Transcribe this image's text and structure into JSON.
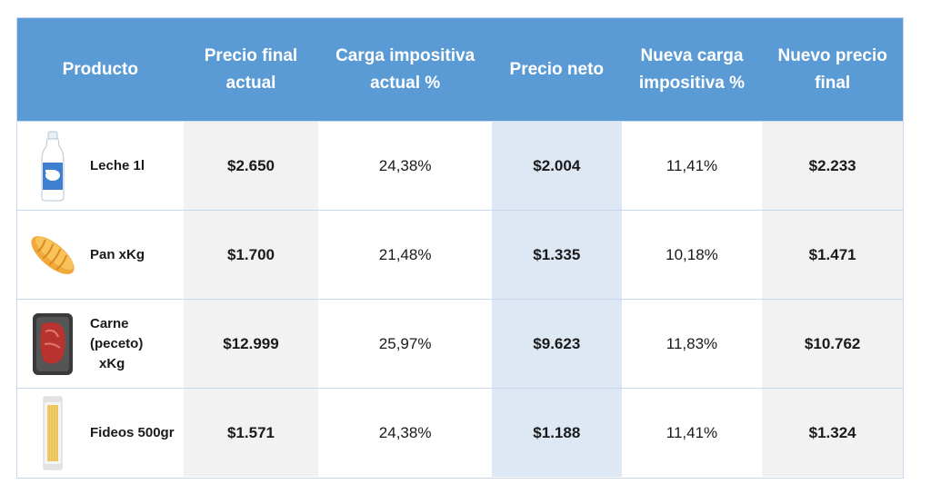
{
  "headers": {
    "producto": "Producto",
    "precio_final_actual": [
      "Precio final",
      "actual"
    ],
    "carga_actual": [
      "Carga impositiva",
      "actual %"
    ],
    "precio_neto": "Precio neto",
    "nueva_carga": [
      "Nueva carga",
      "impositiva %"
    ],
    "nuevo_precio": [
      "Nuevo precio",
      "final"
    ]
  },
  "rows": [
    {
      "producto": [
        "Leche 1l"
      ],
      "icon": "milk-bottle-icon",
      "precio_final_actual": "$2.650",
      "carga_actual": "24,38%",
      "precio_neto": "$2.004",
      "nueva_carga": "11,41%",
      "nuevo_precio": "$2.233"
    },
    {
      "producto": [
        "Pan xKg"
      ],
      "icon": "bread-icon",
      "precio_final_actual": "$1.700",
      "carga_actual": "21,48%",
      "precio_neto": "$1.335",
      "nueva_carga": "10,18%",
      "nuevo_precio": "$1.471"
    },
    {
      "producto": [
        "Carne (peceto)",
        "xKg"
      ],
      "icon": "meat-package-icon",
      "precio_final_actual": "$12.999",
      "carga_actual": "25,97%",
      "precio_neto": "$9.623",
      "nueva_carga": "11,83%",
      "nuevo_precio": "$10.762"
    },
    {
      "producto": [
        "Fideos 500gr"
      ],
      "icon": "pasta-package-icon",
      "precio_final_actual": "$1.571",
      "carga_actual": "24,38%",
      "precio_neto": "$1.188",
      "nueva_carga": "11,41%",
      "nuevo_precio": "$1.324"
    }
  ],
  "colors": {
    "header_bg": "#5b9bd5",
    "gray_col": "#f2f2f2",
    "blue_col": "#dee8f4"
  }
}
